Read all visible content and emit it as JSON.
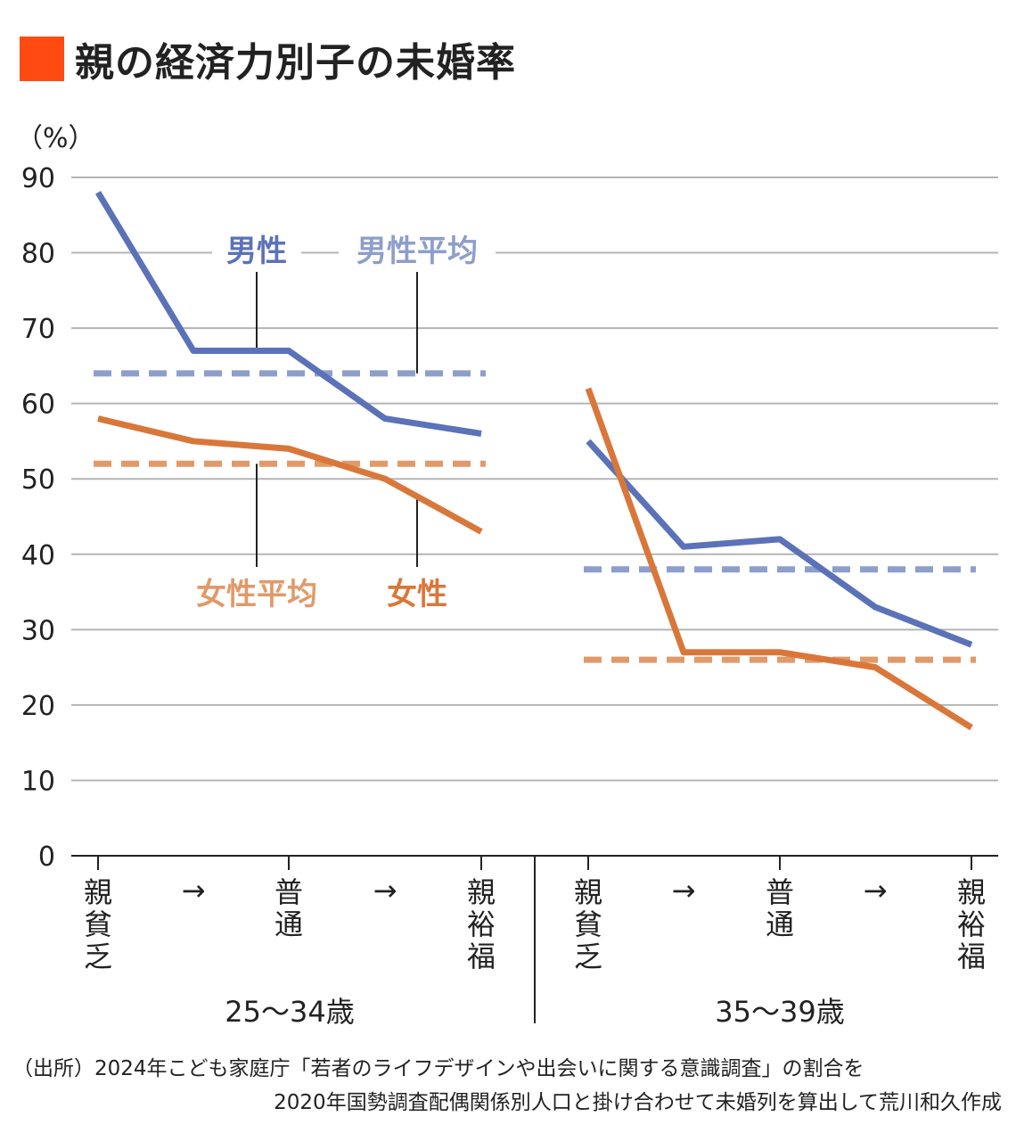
{
  "title": "親の経済力別子の未婚率",
  "colors": {
    "accent": "#ff4a12",
    "male": "#5b72b8",
    "male_avg": "#8e9ecb",
    "female": "#d9773a",
    "female_avg": "#e09a6a",
    "grid": "#b5b5b5"
  },
  "chart_data": {
    "type": "line",
    "unit_label": "（%）",
    "ylim": [
      0,
      90
    ],
    "yticks": [
      "0",
      "10",
      "20",
      "30",
      "40",
      "50",
      "60",
      "70",
      "80",
      "90"
    ],
    "x_labels": [
      "親貧乏",
      "→",
      "普通",
      "→",
      "親裕福"
    ],
    "groups": [
      {
        "name": "25～34歳",
        "series": [
          {
            "name": "男性",
            "values": [
              88,
              67,
              67,
              58,
              56
            ]
          },
          {
            "name": "女性",
            "values": [
              58,
              55,
              54,
              50,
              43
            ]
          },
          {
            "name": "男性平均",
            "values": [
              64,
              64,
              64,
              64,
              64
            ]
          },
          {
            "name": "女性平均",
            "values": [
              52,
              52,
              52,
              52,
              52
            ]
          }
        ]
      },
      {
        "name": "35～39歳",
        "series": [
          {
            "name": "男性",
            "values": [
              55,
              41,
              42,
              33,
              28
            ]
          },
          {
            "name": "女性",
            "values": [
              62,
              27,
              27,
              25,
              17
            ]
          },
          {
            "name": "男性平均",
            "values": [
              38,
              38,
              38,
              38,
              38
            ]
          },
          {
            "name": "女性平均",
            "values": [
              26,
              26,
              26,
              26,
              26
            ]
          }
        ]
      }
    ],
    "annotations": [
      "男性",
      "男性平均",
      "女性平均",
      "女性"
    ]
  },
  "source": [
    "（出所）2024年こども家庭庁「若者のライフデザインや出会いに関する意識調査」の割合を",
    "2020年国勢調査配偶関係別人口と掛け合わせて未婚列を算出して荒川和久作成"
  ]
}
